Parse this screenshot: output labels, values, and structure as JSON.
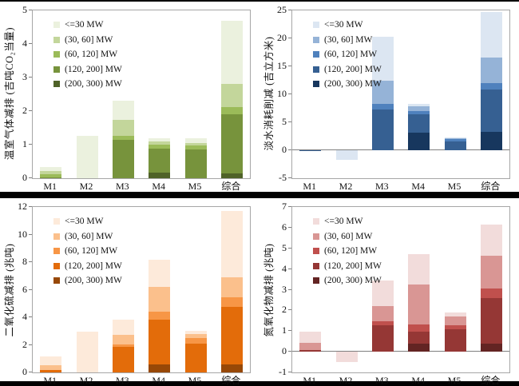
{
  "page": {
    "background": "#ffffff",
    "divider_color": "#000000",
    "axis_border_color": "#a6a6a6",
    "zero_line_color": "#7f7f7f"
  },
  "chart_data": [
    {
      "id": "greenhouse-gas",
      "type": "bar",
      "stacked": true,
      "title": "",
      "ylabel": "温室气体减排 (吉吨CO₂当量)",
      "xlabel": "",
      "ylim": [
        0,
        5
      ],
      "ystep": 1,
      "grid": false,
      "legend_position": "upper-left-inside",
      "categories": [
        "M1",
        "M2",
        "M3",
        "M4",
        "M5",
        "综合"
      ],
      "palette": [
        "#EBF1DE",
        "#C3D69B",
        "#9BBB59",
        "#77933C",
        "#4F6228"
      ],
      "series": [
        {
          "name": "<=30 MW",
          "values": [
            0.12,
            1.27,
            0.55,
            0.1,
            0.13,
            1.9
          ]
        },
        {
          "name": "(30, 60] MW",
          "values": [
            0.08,
            0,
            0.48,
            0.09,
            0.08,
            0.67
          ]
        },
        {
          "name": "(60, 120] MW",
          "values": [
            0.1,
            0,
            0.12,
            0.12,
            0.12,
            0.23
          ]
        },
        {
          "name": "(120, 200] MW",
          "values": [
            0.03,
            0,
            1.15,
            0.72,
            0.85,
            1.75
          ]
        },
        {
          "name": "(200, 300) MW",
          "values": [
            0,
            0,
            0,
            0.16,
            0,
            0.15
          ]
        }
      ]
    },
    {
      "id": "freshwater",
      "type": "bar",
      "stacked": true,
      "title": "",
      "ylabel": "淡水消耗削减 (吉立方米)",
      "xlabel": "",
      "ylim": [
        -5,
        25
      ],
      "ystep": 5,
      "grid": false,
      "legend_position": "upper-left-inside",
      "categories": [
        "M1",
        "M2",
        "M3",
        "M4",
        "M5",
        "综合"
      ],
      "palette": [
        "#DCE6F2",
        "#95B3D7",
        "#4F81BD",
        "#366092",
        "#17375E"
      ],
      "series": [
        {
          "name": "<=30 MW",
          "values": [
            0,
            -1.7,
            7.8,
            0.55,
            0.15,
            8.1
          ]
        },
        {
          "name": "(30, 60] MW",
          "values": [
            0,
            0,
            4.2,
            0.8,
            0.2,
            4.6
          ]
        },
        {
          "name": "(60, 120] MW",
          "values": [
            0,
            0,
            1.0,
            0.55,
            0.4,
            1.1
          ]
        },
        {
          "name": "(120, 200] MW",
          "values": [
            -0.2,
            0,
            7.3,
            3.25,
            1.6,
            7.6
          ]
        },
        {
          "name": "(200, 300) MW",
          "values": [
            0,
            0,
            0,
            3.2,
            0,
            3.3
          ]
        }
      ]
    },
    {
      "id": "sulfur-dioxide",
      "type": "bar",
      "stacked": true,
      "title": "",
      "ylabel": "二氧化硫减排 (兆吨)",
      "xlabel": "",
      "ylim": [
        0,
        12
      ],
      "ystep": 2,
      "grid": false,
      "legend_position": "upper-left-inside",
      "categories": [
        "M1",
        "M2",
        "M3",
        "M4",
        "M5",
        "综合"
      ],
      "palette": [
        "#FDEADA",
        "#FBC08C",
        "#F79646",
        "#E36C0A",
        "#974807"
      ],
      "series": [
        {
          "name": "<=30 MW",
          "values": [
            0.6,
            2.95,
            1.1,
            2.0,
            0.2,
            4.8
          ]
        },
        {
          "name": "(30, 60] MW",
          "values": [
            0.37,
            0,
            0.65,
            1.8,
            0.3,
            1.45
          ]
        },
        {
          "name": "(60, 120] MW",
          "values": [
            0,
            0,
            0.2,
            0.6,
            0.4,
            0.7
          ]
        },
        {
          "name": "(120, 200] MW",
          "values": [
            0.18,
            0,
            1.85,
            3.2,
            2.1,
            4.15
          ]
        },
        {
          "name": "(200, 300) MW",
          "values": [
            0,
            0,
            0,
            0.6,
            0,
            0.6
          ]
        }
      ]
    },
    {
      "id": "nitrogen-oxides",
      "type": "bar",
      "stacked": true,
      "title": "",
      "ylabel": "氮氧化物减排 (兆吨)",
      "xlabel": "",
      "ylim": [
        -1,
        7
      ],
      "ystep": 1,
      "grid": false,
      "legend_position": "upper-left-inside",
      "categories": [
        "M1",
        "M2",
        "M3",
        "M4",
        "M5",
        "综合"
      ],
      "palette": [
        "#F2DCDB",
        "#D99694",
        "#C0504D",
        "#953735",
        "#632423"
      ],
      "series": [
        {
          "name": "<=30 MW",
          "values": [
            0.55,
            -0.5,
            1.25,
            1.47,
            0.18,
            1.5
          ]
        },
        {
          "name": "(30, 60] MW",
          "values": [
            0.34,
            0,
            0.74,
            1.94,
            0.42,
            1.6
          ]
        },
        {
          "name": "(60, 120] MW",
          "values": [
            0,
            0,
            0.16,
            0.33,
            0.18,
            0.45
          ]
        },
        {
          "name": "(120, 200] MW",
          "values": [
            0.08,
            0,
            1.3,
            0.58,
            1.1,
            2.2
          ]
        },
        {
          "name": "(200, 300) MW",
          "values": [
            0,
            0,
            0,
            0.4,
            0,
            0.4
          ]
        }
      ]
    }
  ]
}
